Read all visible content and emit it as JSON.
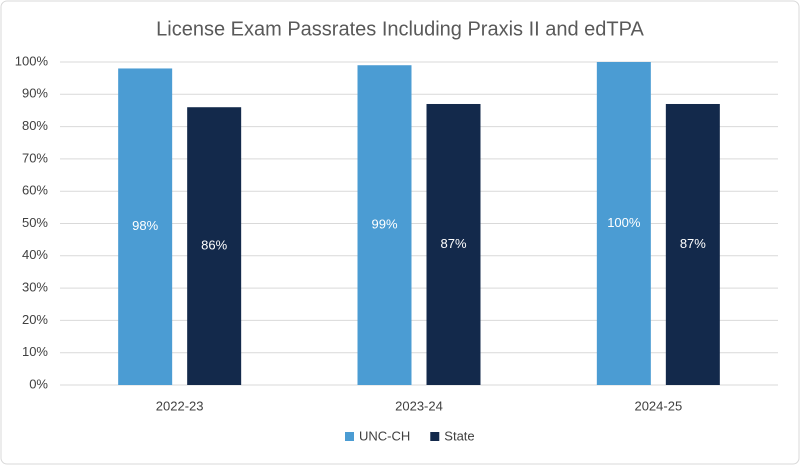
{
  "chart_data": {
    "type": "bar",
    "title": "License Exam Passrates Including Praxis II and edTPA",
    "categories": [
      "2022-23",
      "2023-24",
      "2024-25"
    ],
    "series": [
      {
        "name": "UNC-CH",
        "color": "#4b9cd3",
        "values": [
          98,
          99,
          100
        ],
        "value_labels": [
          "98%",
          "99%",
          "100%"
        ]
      },
      {
        "name": "State",
        "color": "#13294b",
        "values": [
          86,
          87,
          87
        ],
        "value_labels": [
          "86%",
          "87%",
          "87%"
        ]
      }
    ],
    "ylim": [
      0,
      100
    ],
    "yticks": [
      {
        "value": 0,
        "label": "0%"
      },
      {
        "value": 10,
        "label": "10%"
      },
      {
        "value": 20,
        "label": "20%"
      },
      {
        "value": 30,
        "label": "30%"
      },
      {
        "value": 40,
        "label": "40%"
      },
      {
        "value": 50,
        "label": "50%"
      },
      {
        "value": 60,
        "label": "60%"
      },
      {
        "value": 70,
        "label": "70%"
      },
      {
        "value": 80,
        "label": "80%"
      },
      {
        "value": 90,
        "label": "90%"
      },
      {
        "value": 100,
        "label": "100%"
      }
    ],
    "grid": true,
    "legend": "bottom"
  }
}
